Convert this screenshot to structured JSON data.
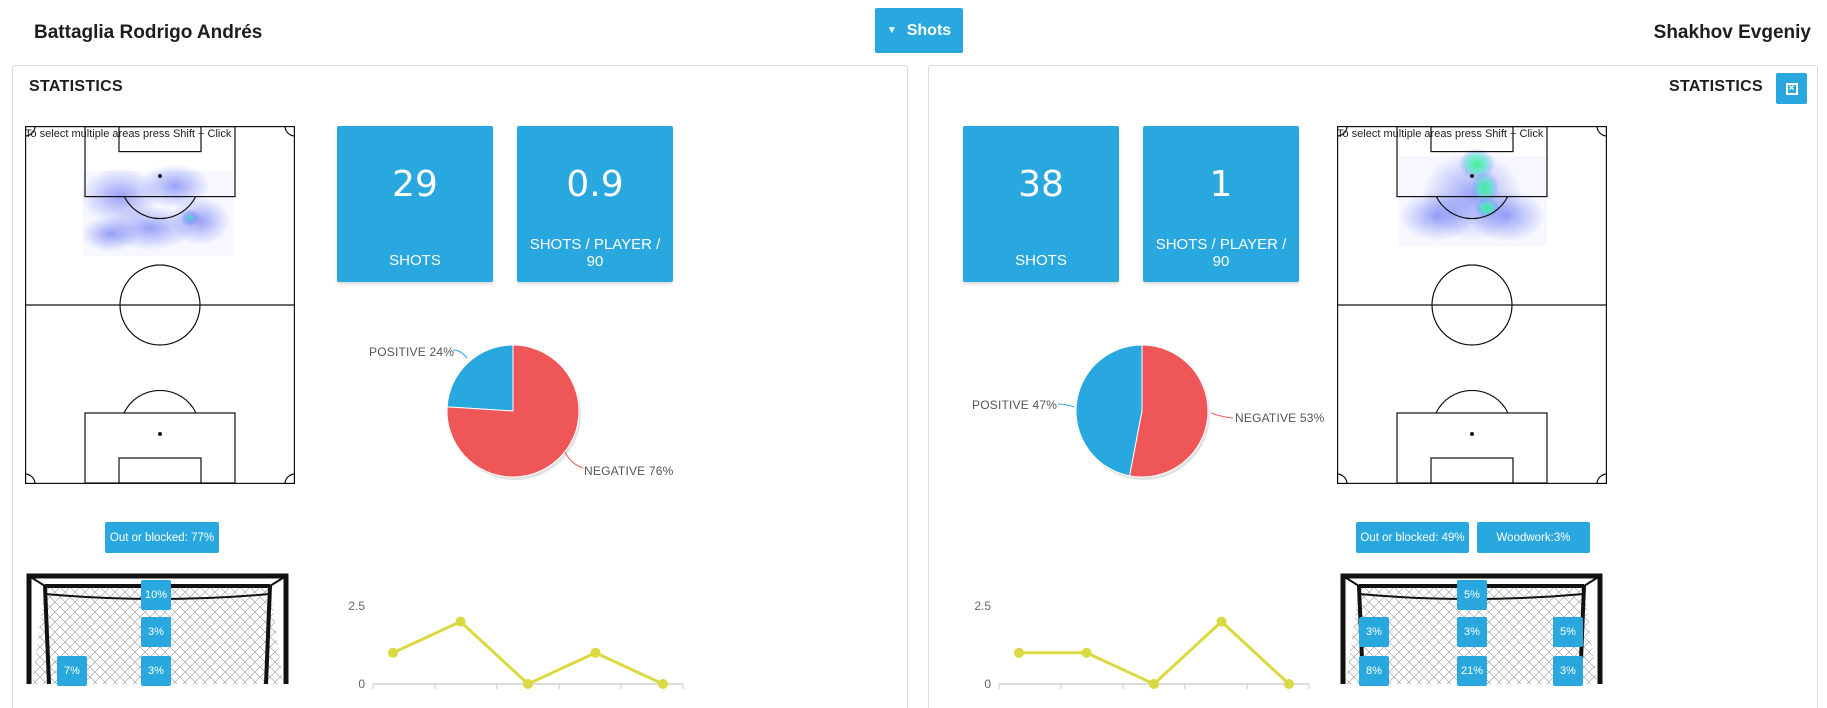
{
  "header": {
    "left_player": "Battaglia Rodrigo Andrés",
    "right_player": "Shakhov Evgeniy",
    "metric_selector": "Shots"
  },
  "colors": {
    "accent": "#29a8e0",
    "negative": "#ef5658",
    "positive": "#29a8e0",
    "line": "#d9d941"
  },
  "panels": {
    "left": {
      "title": "STATISTICS",
      "pitch_hint": "To select multiple areas press Shift + Click",
      "stat_boxes": [
        {
          "value": "29",
          "label": "SHOTS"
        },
        {
          "value": "0.9",
          "label": "SHOTS / PLAYER / 90"
        }
      ],
      "pie": {
        "positive_label": "POSITIVE 24%",
        "negative_label": "NEGATIVE 76%"
      },
      "outcome_chips": [
        "Out or blocked: 77%"
      ],
      "goal_tags": [
        "10%",
        "3%",
        "7%",
        "3%"
      ]
    },
    "right": {
      "title": "STATISTICS",
      "pitch_hint": "To select multiple areas press Shift + Click",
      "stat_boxes": [
        {
          "value": "38",
          "label": "SHOTS"
        },
        {
          "value": "1",
          "label": "SHOTS / PLAYER / 90"
        }
      ],
      "pie": {
        "positive_label": "POSITIVE 47%",
        "negative_label": "NEGATIVE 53%"
      },
      "outcome_chips": [
        "Out or blocked: 49%",
        "Woodwork:3%"
      ],
      "goal_tags": [
        "5%",
        "3%",
        "3%",
        "5%",
        "8%",
        "21%",
        "3%"
      ]
    }
  },
  "chart_data": [
    {
      "type": "pie",
      "categories": [
        "POSITIVE",
        "NEGATIVE"
      ],
      "values": [
        24,
        76
      ]
    },
    {
      "type": "line",
      "y_ticks": [
        "2.5",
        "0"
      ],
      "ylim": [
        0,
        2.5
      ],
      "values": [
        1,
        2,
        0,
        1,
        0
      ]
    },
    {
      "type": "pie",
      "categories": [
        "POSITIVE",
        "NEGATIVE"
      ],
      "values": [
        47,
        53
      ]
    },
    {
      "type": "line",
      "y_ticks": [
        "2.5",
        "0"
      ],
      "ylim": [
        0,
        2.5
      ],
      "values": [
        1,
        1,
        0,
        2,
        0
      ]
    }
  ]
}
